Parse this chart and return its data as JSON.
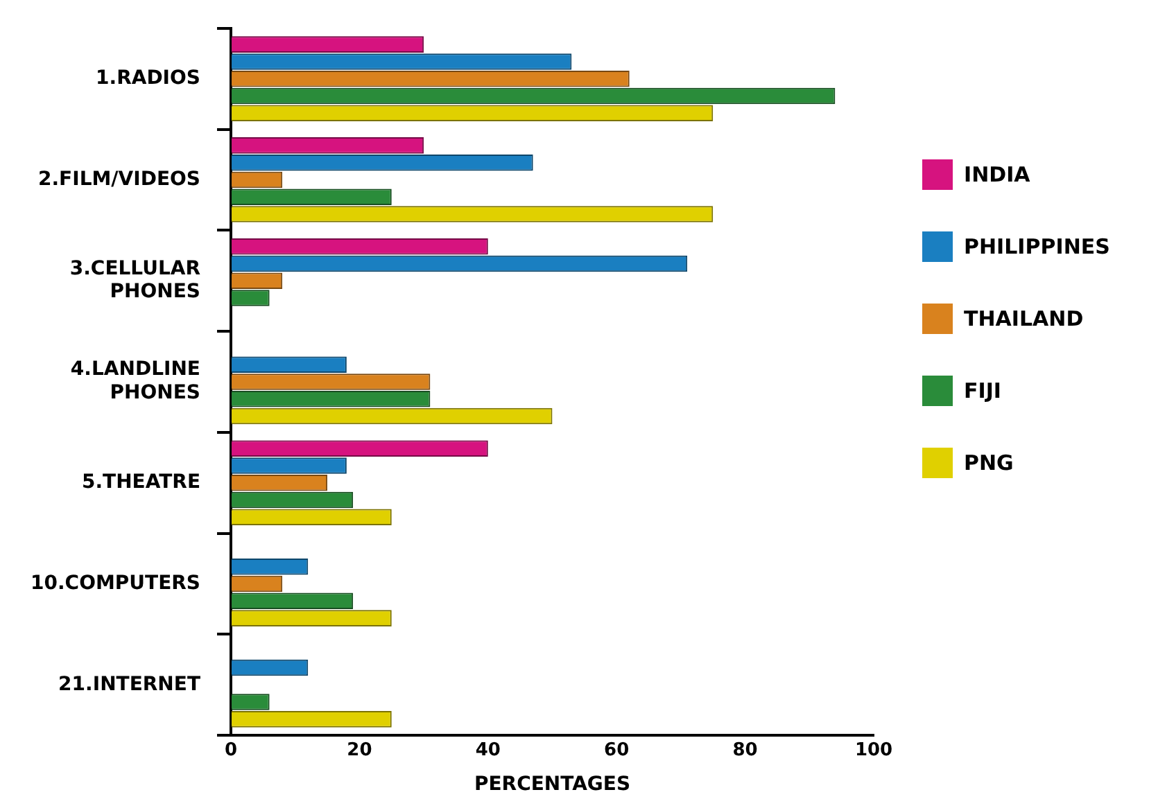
{
  "chart_data": {
    "type": "bar",
    "orientation": "horizontal",
    "xlabel": "PERCENTAGES",
    "categories": [
      "1.RADIOS",
      "2.FILM/VIDEOS",
      "3.CELLULAR PHONES",
      "4.LANDLINE PHONES",
      "5.THEATRE",
      "10.COMPUTERS",
      "21.INTERNET"
    ],
    "series": [
      {
        "name": "INDIA",
        "color": "#d6137f",
        "values": [
          30,
          30,
          40,
          null,
          40,
          null,
          null
        ]
      },
      {
        "name": "PHILIPPINES",
        "color": "#1a7fc1",
        "values": [
          53,
          47,
          71,
          18,
          18,
          12,
          12
        ]
      },
      {
        "name": "THAILAND",
        "color": "#d9821e",
        "values": [
          62,
          8,
          8,
          31,
          15,
          8,
          null
        ]
      },
      {
        "name": "FIJI",
        "color": "#2a8c3a",
        "values": [
          94,
          25,
          6,
          31,
          19,
          19,
          6
        ]
      },
      {
        "name": "PNG",
        "color": "#e0d000",
        "values": [
          75,
          75,
          null,
          50,
          25,
          25,
          25
        ]
      }
    ],
    "xlim": [
      0,
      100
    ],
    "xticks": [
      0,
      20,
      40,
      60,
      80,
      100
    ],
    "grid": false,
    "legend": "right"
  }
}
